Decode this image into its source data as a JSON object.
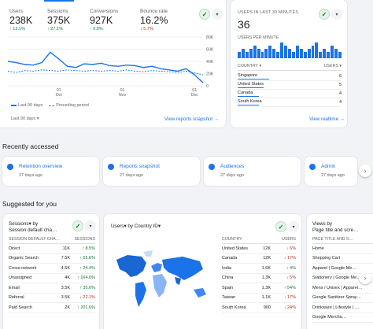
{
  "overview": {
    "metrics": [
      {
        "label": "Users",
        "value": "238K",
        "delta": "↑ 12.1%",
        "dir": "up"
      },
      {
        "label": "Sessions",
        "value": "375K",
        "delta": "↑ 27.1%",
        "dir": "up"
      },
      {
        "label": "Conversions",
        "value": "927K",
        "delta": "↑ 6.0%",
        "dir": "up"
      },
      {
        "label": "Bounce rate",
        "value": "16.2%",
        "delta": "↓ 5.7%",
        "dir": "down"
      }
    ],
    "y_ticks": [
      "80K",
      "60K",
      "40K",
      "20K",
      "0"
    ],
    "x_ticks": [
      {
        "top": "01",
        "bottom": "Oct"
      },
      {
        "top": "01",
        "bottom": "Nov"
      },
      {
        "top": "01",
        "bottom": "Dec"
      }
    ],
    "legend_current": "Last 90 days",
    "legend_previous": "Preceding period",
    "period_select": "Last 90 days",
    "footer_link": "View reports snapshot"
  },
  "chart_data": {
    "type": "line",
    "x": [
      0,
      1,
      2,
      3,
      4,
      5,
      6,
      7,
      8,
      9,
      10,
      11,
      12,
      13,
      14,
      15,
      16,
      17,
      18,
      19,
      20,
      21,
      22,
      23
    ],
    "series": [
      {
        "name": "Last 90 days",
        "values": [
          40,
          38,
          35,
          34,
          38,
          55,
          44,
          32,
          30,
          36,
          35,
          37,
          33,
          32,
          34,
          33,
          30,
          32,
          28,
          26,
          24,
          28,
          18,
          5
        ]
      },
      {
        "name": "Preceding period",
        "values": [
          24,
          22,
          25,
          24,
          26,
          25,
          24,
          26,
          25,
          24,
          25,
          24,
          25,
          24,
          26,
          24,
          23,
          25,
          24,
          23,
          22,
          24,
          21,
          18
        ]
      }
    ],
    "xlabels": [
      "01 Oct",
      "01 Nov",
      "01 Dec"
    ],
    "ylim": [
      0,
      80
    ]
  },
  "realtime": {
    "title": "USERS IN LAST 30 MINUTES",
    "count": "36",
    "per_minute_label": "USERS PER MINUTE",
    "bars": [
      2,
      3,
      2,
      3,
      4,
      3,
      2,
      3,
      4,
      3,
      2,
      5,
      4,
      3,
      2,
      4,
      3,
      2,
      3,
      4,
      5,
      2,
      3,
      2,
      4,
      3,
      2
    ],
    "col_country": "COUNTRY",
    "col_users": "USERS",
    "rows": [
      {
        "country": "Singapore",
        "users": "6"
      },
      {
        "country": "United States",
        "users": "5"
      },
      {
        "country": "Canada",
        "users": "4"
      },
      {
        "country": "South Korea",
        "users": "4"
      }
    ],
    "footer_link": "View realtime"
  },
  "recently_accessed": {
    "heading": "Recently accessed",
    "items": [
      {
        "title": "Retention overview",
        "sub": "27 days ago"
      },
      {
        "title": "Reports snapshot",
        "sub": "27 days ago"
      },
      {
        "title": "Audiences",
        "sub": "27 days ago"
      },
      {
        "title": "Admin",
        "sub": "27 days ago"
      }
    ]
  },
  "suggested": {
    "heading": "Suggested for you",
    "sessions_card": {
      "title_line1": "Sessions▾ by",
      "title_line2": "Session default cha…",
      "col1": "SESSION DEFAULT CHA…",
      "col2": "SESSIONS",
      "rows": [
        {
          "name": "Direct",
          "value": "11K",
          "delta": "↑ 8.5%",
          "dir": "up"
        },
        {
          "name": "Organic Search",
          "value": "7.5K",
          "delta": "↑ 55.6%",
          "dir": "up"
        },
        {
          "name": "Cross-network",
          "value": "4.5K",
          "delta": "↑ 24.4%",
          "dir": "up"
        },
        {
          "name": "Unassigned",
          "value": "4K",
          "delta": "↑ 164.6%",
          "dir": "up"
        },
        {
          "name": "Email",
          "value": "3.5K",
          "delta": "↑ 35.6%",
          "dir": "up"
        },
        {
          "name": "Referral",
          "value": "3.5K",
          "delta": "↓ 22.1%",
          "dir": "down"
        },
        {
          "name": "Paid Search",
          "value": "2K",
          "delta": "↑ 201.6%",
          "dir": "up"
        }
      ]
    },
    "country_card": {
      "title": "Users▾ by Country ID▾",
      "col1": "COUNTRY",
      "col2": "USERS",
      "rows": [
        {
          "name": "United States",
          "value": "12K",
          "delta": "↓ 6%",
          "dir": "down"
        },
        {
          "name": "Canada",
          "value": "12K",
          "delta": "↓ 17%",
          "dir": "down"
        },
        {
          "name": "India",
          "value": "1.6K",
          "delta": "↑ 4%",
          "dir": "up"
        },
        {
          "name": "China",
          "value": "1.3K",
          "delta": "↓ 5%",
          "dir": "down"
        },
        {
          "name": "Spain",
          "value": "1.3K",
          "delta": "↑ 54%",
          "dir": "up"
        },
        {
          "name": "Taiwan",
          "value": "1.1K",
          "delta": "↓ 17%",
          "dir": "down"
        },
        {
          "name": "South Korea",
          "value": "900",
          "delta": "↓ 24%",
          "dir": "down"
        }
      ]
    },
    "pages_card": {
      "title_line1": "Views by",
      "title_line2": "Page title and scre…",
      "col1": "PAGE TITLE AND S…",
      "rows": [
        "Home",
        "Shopping Cart",
        "Apparel | Google Me…",
        "Stationery | Google Me…",
        "Mens / Unisex | Apparel…",
        "Google Sanitizer Spray…",
        "Drinkware | Lifestyle | …",
        "Google Mercha…"
      ]
    }
  }
}
